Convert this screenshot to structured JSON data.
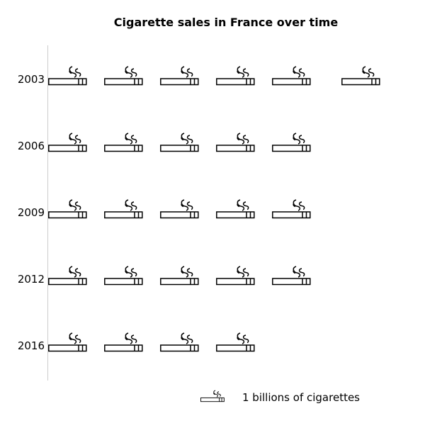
{
  "chart_data": {
    "type": "pictograph",
    "title": "Cigarette sales in France over time",
    "icon": "cigarette-icon",
    "categories": [
      "2003",
      "2006",
      "2009",
      "2012",
      "2016"
    ],
    "values": [
      6,
      5,
      5,
      5,
      4
    ],
    "legend": {
      "label": "1 billions of cigarettes",
      "unit_value": 1,
      "position": "bottom-right"
    },
    "grid": false
  }
}
